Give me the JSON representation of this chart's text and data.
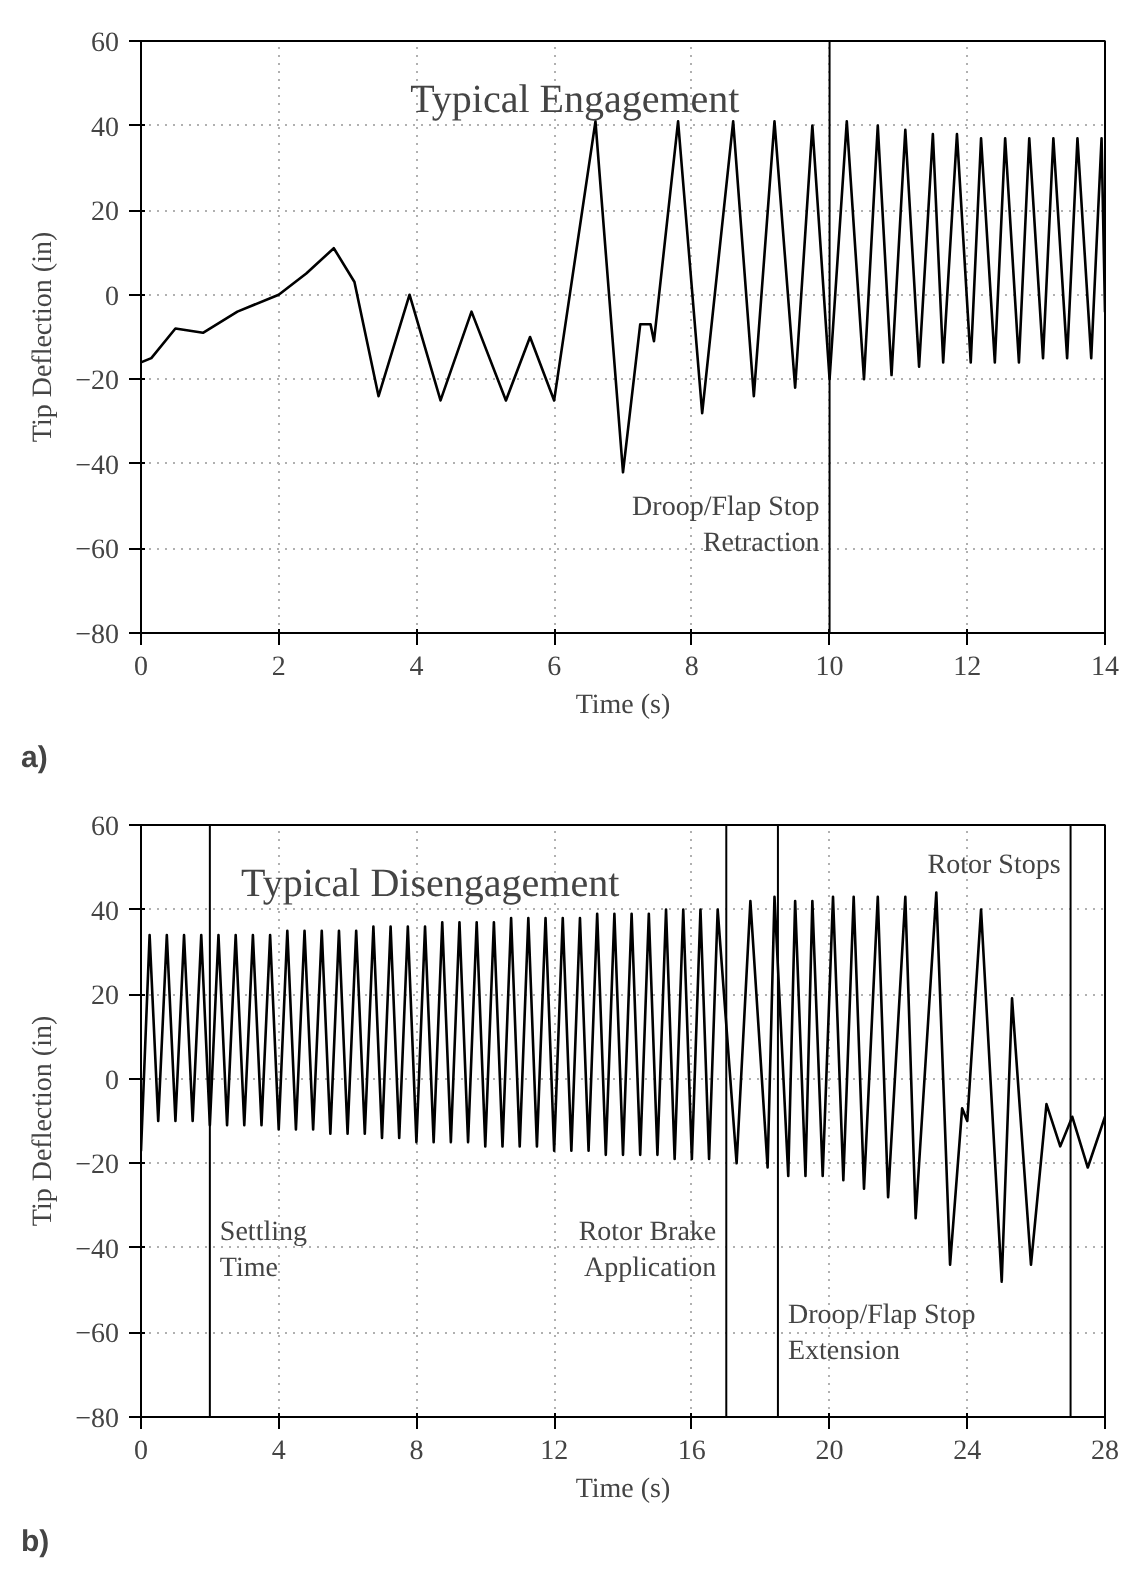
{
  "chart_data": [
    {
      "type": "line",
      "title": "Typical Engagement",
      "xlabel": "Time (s)",
      "ylabel": "Tip Deflection (in)",
      "annotations": [
        "a)"
      ],
      "xlim": [
        0,
        14
      ],
      "ylim": [
        -80,
        60
      ],
      "xticks": [
        0,
        2,
        4,
        6,
        8,
        10,
        12,
        14
      ],
      "yticks": [
        -80,
        -60,
        -40,
        -20,
        0,
        20,
        40,
        60
      ],
      "grid": true,
      "ref_lines": [
        {
          "axis": "x",
          "value": 10,
          "label": "Droop/Flap Stop\nRetraction",
          "color": "#000000"
        }
      ],
      "series": [
        {
          "color": "#000000",
          "x": [
            0,
            0.15,
            0.5,
            0.9,
            1.4,
            2,
            2.4,
            2.8,
            3.1,
            3.45,
            3.9,
            4.35,
            4.8,
            5.3,
            5.65,
            6.0,
            6.6,
            7.0,
            7.25,
            7.4,
            7.45,
            7.8,
            8.15,
            8.6,
            8.9,
            9.2,
            9.5,
            9.75,
            10.0,
            10.25,
            10.5,
            10.7,
            10.9,
            11.1,
            11.3,
            11.5,
            11.65,
            11.85,
            12.05,
            12.2,
            12.4,
            12.55,
            12.75,
            12.9,
            13.1,
            13.25,
            13.45,
            13.6,
            13.8,
            13.95,
            14
          ],
          "values": [
            -16,
            -15,
            -8,
            -9,
            -4,
            0,
            5,
            11,
            3,
            -24,
            0,
            -25,
            -4,
            -25,
            -10,
            -25,
            41,
            -42,
            -7,
            -7,
            -11,
            41,
            -28,
            41,
            -24,
            41,
            -22,
            40,
            -20,
            41,
            -20,
            40,
            -19,
            39,
            -17,
            38,
            -16,
            38,
            -16,
            37,
            -16,
            37,
            -16,
            37,
            -15,
            37,
            -15,
            37,
            -15,
            37,
            -4
          ]
        }
      ]
    },
    {
      "type": "line",
      "title": "Typical Disengagement",
      "xlabel": "Time (s)",
      "ylabel": "Tip Deflection (in)",
      "annotations": [
        "b)"
      ],
      "xlim": [
        0,
        28
      ],
      "ylim": [
        -80,
        60
      ],
      "xticks": [
        0,
        4,
        8,
        12,
        16,
        20,
        24,
        28
      ],
      "yticks": [
        -80,
        -60,
        -40,
        -20,
        0,
        20,
        40,
        60
      ],
      "grid": true,
      "ref_lines": [
        {
          "axis": "x",
          "value": 2,
          "label": "Settling\nTime",
          "color": "#000000"
        },
        {
          "axis": "x",
          "value": 17,
          "label": "Rotor Brake\nApplication",
          "color": "#000000"
        },
        {
          "axis": "x",
          "value": 18.5,
          "label": "Droop/Flap Stop\nExtension",
          "color": "#000000"
        },
        {
          "axis": "x",
          "value": 27,
          "label": "Rotor Stops",
          "color": "#000000"
        }
      ],
      "series": [
        {
          "color": "#000000",
          "x": [
            0,
            0.25,
            0.5,
            0.75,
            1.0,
            1.25,
            1.5,
            1.75,
            2.0,
            2.25,
            2.5,
            2.75,
            3.0,
            3.25,
            3.5,
            3.75,
            4.0,
            4.25,
            4.5,
            4.75,
            5.0,
            5.25,
            5.5,
            5.75,
            6.0,
            6.25,
            6.5,
            6.75,
            7.0,
            7.25,
            7.5,
            7.75,
            8.0,
            8.25,
            8.5,
            8.75,
            9.0,
            9.25,
            9.5,
            9.75,
            10.0,
            10.25,
            10.5,
            10.75,
            11.0,
            11.25,
            11.5,
            11.75,
            12.0,
            12.25,
            12.5,
            12.75,
            13.0,
            13.25,
            13.5,
            13.75,
            14.0,
            14.25,
            14.5,
            14.75,
            15.0,
            15.25,
            15.5,
            15.75,
            16.0,
            16.25,
            16.5,
            16.75,
            17.3,
            17.7,
            18.2,
            18.4,
            18.8,
            19.0,
            19.3,
            19.5,
            19.8,
            20.1,
            20.4,
            20.7,
            21.0,
            21.4,
            21.7,
            22.2,
            22.5,
            23.1,
            23.5,
            23.85,
            24.0,
            24.4,
            25.0,
            25.3,
            25.85,
            26.3,
            26.7,
            27.05,
            27.5,
            28
          ],
          "values": [
            -17,
            34,
            -10,
            34,
            -10,
            34,
            -10,
            34,
            -11,
            34,
            -11,
            34,
            -11,
            34,
            -11,
            34,
            -12,
            35,
            -12,
            35,
            -12,
            35,
            -13,
            35,
            -13,
            35,
            -13,
            36,
            -14,
            36,
            -14,
            36,
            -15,
            36,
            -15,
            37,
            -15,
            37,
            -15,
            37,
            -16,
            37,
            -16,
            38,
            -16,
            38,
            -16,
            38,
            -17,
            38,
            -17,
            38,
            -17,
            39,
            -18,
            39,
            -18,
            39,
            -18,
            39,
            -18,
            40,
            -19,
            40,
            -19,
            40,
            -19,
            40,
            -20,
            42,
            -21,
            43,
            -23,
            42,
            -23,
            42,
            -23,
            43,
            -24,
            43,
            -26,
            43,
            -28,
            43,
            -33,
            44,
            -44,
            -7,
            -10,
            40,
            -48,
            19,
            -44,
            -6,
            -16,
            -9,
            -21,
            -9
          ]
        }
      ]
    }
  ]
}
